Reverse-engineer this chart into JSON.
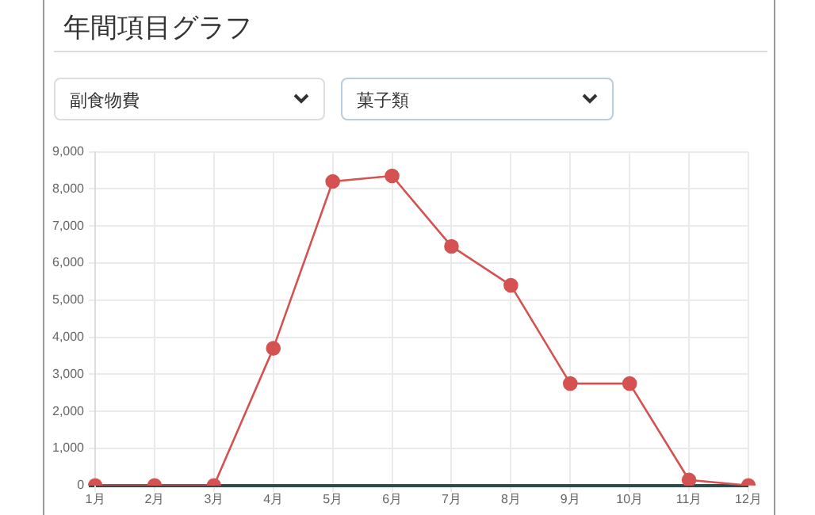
{
  "chart_data": {
    "type": "line",
    "title": "年間項目グラフ",
    "annotations": [
      "副食物費",
      "菓子類"
    ],
    "categories": [
      "1月",
      "2月",
      "3月",
      "4月",
      "5月",
      "6月",
      "7月",
      "8月",
      "9月",
      "10月",
      "11月",
      "12月"
    ],
    "series": [
      {
        "color": "#d45252",
        "values": [
          0,
          0,
          0,
          3700,
          8200,
          8350,
          6450,
          5400,
          2750,
          2750,
          150,
          0
        ]
      }
    ],
    "ylim": [
      0,
      9000
    ],
    "yticks": [
      {
        "value": 0,
        "label": "0"
      },
      {
        "value": 1000,
        "label": "1,000"
      },
      {
        "value": 2000,
        "label": "2,000"
      },
      {
        "value": 3000,
        "label": "3,000"
      },
      {
        "value": 4000,
        "label": "4,000"
      },
      {
        "value": 5000,
        "label": "5,000"
      },
      {
        "value": 6000,
        "label": "6,000"
      },
      {
        "value": 7000,
        "label": "7,000"
      },
      {
        "value": 8000,
        "label": "8,000"
      },
      {
        "value": 9000,
        "label": "9,000"
      }
    ],
    "grid": true,
    "legend": false,
    "marker": "circle",
    "line_style": "solid"
  }
}
